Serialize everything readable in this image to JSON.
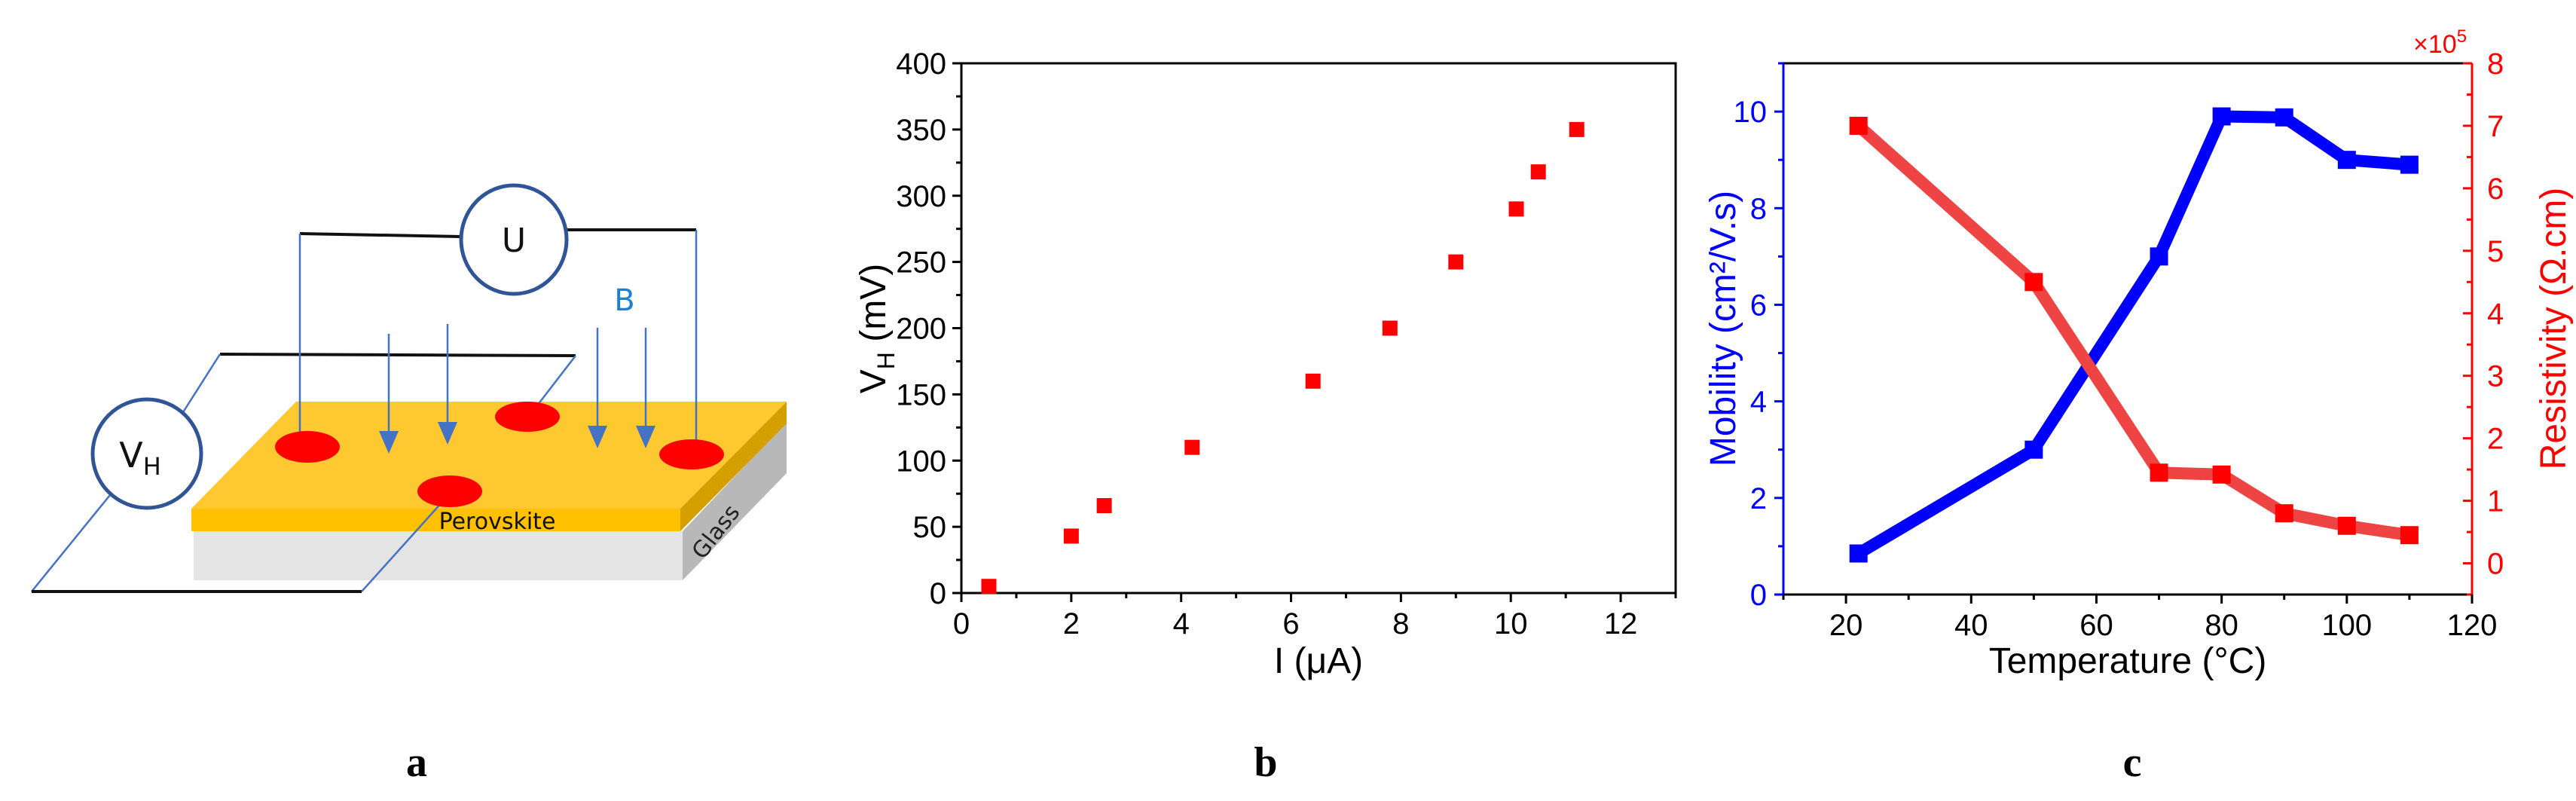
{
  "figure": {
    "panel_labels": [
      "a",
      "b",
      "c"
    ]
  },
  "diagram": {
    "voltmeter_u_label": "U",
    "voltmeter_vh_label": "V",
    "voltmeter_vh_subscript": "H",
    "field_label": "B",
    "layer_top_label": "Perovskite",
    "layer_bottom_label": "Glass",
    "colors": {
      "perovskite_top": "#fdc830",
      "perovskite_front": "#ffc000",
      "perovskite_side": "#d4a000",
      "glass_front": "#e4e4e4",
      "glass_side": "#b8b8b8",
      "contact": "#ff0000",
      "wire_blue": "#4472c4",
      "circle_stroke": "#2f5597",
      "field_label": "#1f7fd0"
    }
  },
  "chart_data": [
    {
      "panel": "b",
      "type": "scatter",
      "title": "",
      "xlabel": "I (μA)",
      "ylabel_main": "V",
      "ylabel_sub": "H",
      "ylabel_unit": " (mV)",
      "xlim": [
        0,
        13
      ],
      "ylim": [
        0,
        400
      ],
      "xticks": [
        0,
        2,
        4,
        6,
        8,
        10,
        12
      ],
      "yticks": [
        0,
        50,
        100,
        150,
        200,
        250,
        300,
        350,
        400
      ],
      "grid": false,
      "marker_color": "#ff0000",
      "x": [
        0.5,
        2.0,
        2.6,
        4.2,
        6.4,
        7.8,
        9.0,
        10.1,
        10.5,
        11.2
      ],
      "y": [
        5,
        43,
        66,
        110,
        160,
        200,
        250,
        290,
        318,
        350
      ]
    },
    {
      "panel": "c",
      "type": "line",
      "title": "",
      "xlabel": "Temperature (°C)",
      "xlim": [
        10,
        120
      ],
      "xticks": [
        20,
        40,
        60,
        80,
        100,
        120
      ],
      "grid": false,
      "left_axis": {
        "label": "Mobility (cm²/V.s)",
        "ylim": [
          0,
          11
        ],
        "yticks": [
          0,
          2,
          4,
          6,
          8,
          10
        ],
        "color": "#0000ff"
      },
      "right_axis": {
        "label": "Resistivity (Ω.cm)",
        "multiplier": "×10",
        "multiplier_exp": "5",
        "ylim": [
          -0.5,
          8
        ],
        "yticks": [
          0,
          1,
          2,
          3,
          4,
          5,
          6,
          7,
          8
        ],
        "color": "#ff0000"
      },
      "x": [
        22,
        50,
        70,
        80,
        90,
        100,
        110
      ],
      "series": [
        {
          "name": "Mobility",
          "axis": "left",
          "color": "#0000ff",
          "values": [
            0.85,
            3.0,
            7.0,
            9.9,
            9.88,
            9.0,
            8.9
          ]
        },
        {
          "name": "Resistivity",
          "axis": "right",
          "color": "#ff0000",
          "line_color": "#ee4444",
          "values": [
            7.0,
            4.5,
            1.45,
            1.42,
            0.8,
            0.6,
            0.45
          ]
        }
      ]
    }
  ]
}
